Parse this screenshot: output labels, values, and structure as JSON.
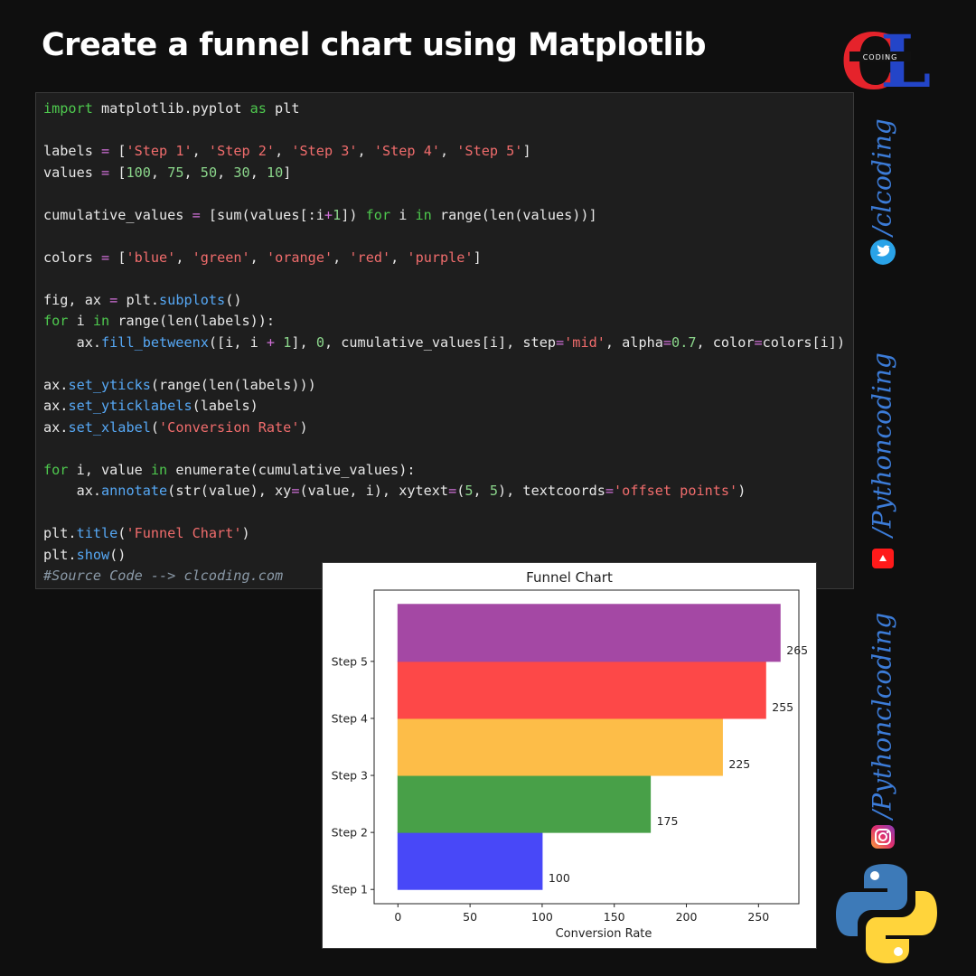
{
  "page": {
    "title": "Create a funnel chart using Matplotlib",
    "code_lines": [
      "import matplotlib.pyplot as plt",
      "",
      "labels = ['Step 1', 'Step 2', 'Step 3', 'Step 4', 'Step 5']",
      "values = [100, 75, 50, 30, 10]",
      "",
      "cumulative_values = [sum(values[:i+1]) for i in range(len(values))]",
      "",
      "colors = ['blue', 'green', 'orange', 'red', 'purple']",
      "",
      "fig, ax = plt.subplots()",
      "for i in range(len(labels)):",
      "    ax.fill_betweenx([i, i + 1], 0, cumulative_values[i], step='mid', alpha=0.7, color=colors[i])",
      "",
      "ax.set_yticks(range(len(labels)))",
      "ax.set_yticklabels(labels)",
      "ax.set_xlabel('Conversion Rate')",
      "",
      "for i, value in enumerate(cumulative_values):",
      "    ax.annotate(str(value), xy=(value, i), xytext=(5, 5), textcoords='offset points')",
      "",
      "plt.title('Funnel Chart')",
      "plt.show()",
      "#Source Code --> clcoding.com"
    ]
  },
  "social": {
    "handles": [
      "/clcoding",
      "/Pythoncoding",
      "/Pythonclcoding"
    ],
    "icons": [
      "twitter-icon",
      "youtube-icon",
      "instagram-icon"
    ]
  },
  "logo": {
    "icon": "clcoding-logo",
    "text": "CODING"
  },
  "chart_data": {
    "type": "bar",
    "title": "Funnel Chart",
    "xlabel": "Conversion Rate",
    "ylabel": "",
    "categories": [
      "Step 1",
      "Step 2",
      "Step 3",
      "Step 4",
      "Step 5"
    ],
    "values": [
      100,
      175,
      225,
      255,
      265
    ],
    "value_labels": [
      "100",
      "175",
      "225",
      "255",
      "265"
    ],
    "colors": [
      "#4848f8",
      "#48a048",
      "#fdbd48",
      "#fd4848",
      "#a448a4"
    ],
    "xticks": [
      0,
      50,
      100,
      150,
      200,
      250
    ],
    "xlim": [
      -16.5,
      278
    ],
    "ylim": [
      -0.25,
      5.25
    ],
    "grid": false,
    "legend": "none"
  }
}
